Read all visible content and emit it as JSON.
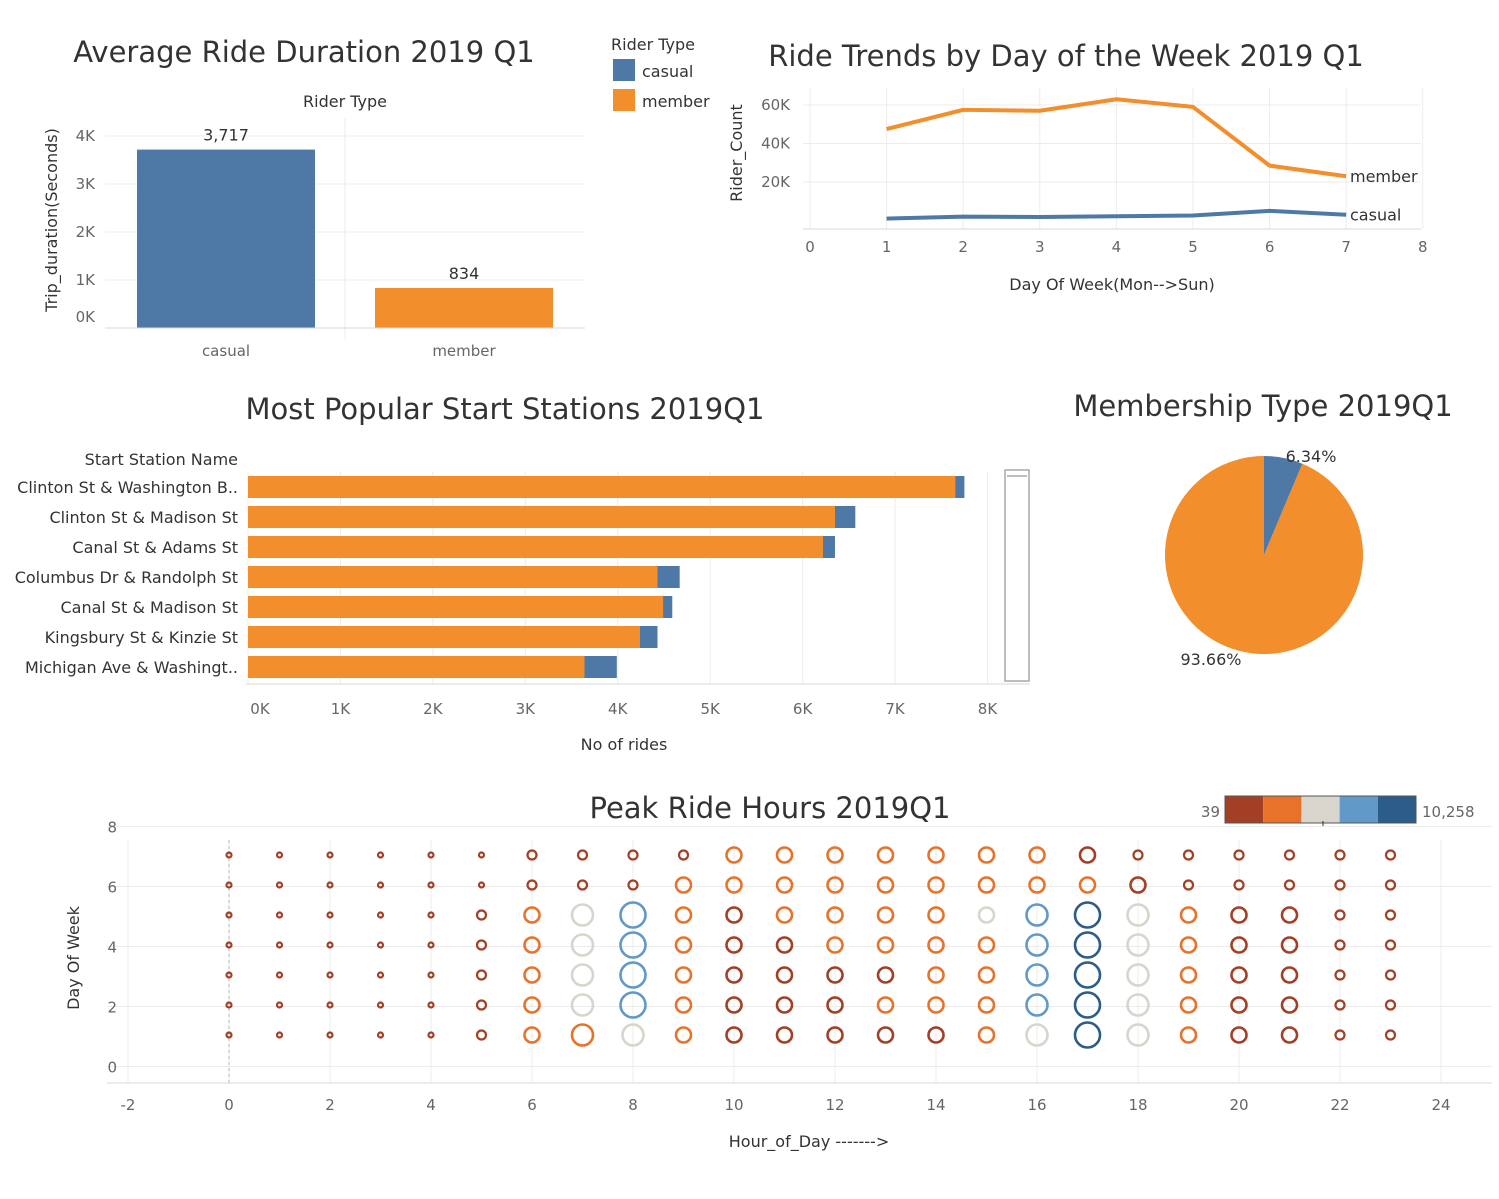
{
  "colors": {
    "casual": "#4e79a7",
    "member": "#f28e2b",
    "scale": [
      "#a23f25",
      "#e8722a",
      "#d8d5cd",
      "#6199c8",
      "#2c5c8a"
    ]
  },
  "legend_rider": {
    "title": "Rider Type",
    "items": [
      {
        "label": "casual",
        "color": "#4e79a7"
      },
      {
        "label": "member",
        "color": "#f28e2b"
      }
    ]
  },
  "color_legend": {
    "min": "39",
    "max": "10,258"
  },
  "chart_data": [
    {
      "id": "duration",
      "type": "bar",
      "title": "Average Ride Duration 2019 Q1",
      "header": "Rider Type",
      "ylabel": "Trip_duration(Seconds)",
      "categories": [
        "casual",
        "member"
      ],
      "values": [
        3717,
        834
      ],
      "value_labels": [
        "3,717",
        "834"
      ],
      "yticks": [
        "0K",
        "1K",
        "2K",
        "3K",
        "4K"
      ],
      "ylim": [
        0,
        4300
      ]
    },
    {
      "id": "trends",
      "type": "line",
      "title": "Ride Trends by Day of the Week 2019 Q1",
      "xlabel": "Day Of Week(Mon-->Sun)",
      "ylabel": "Rider_Count",
      "x": [
        1,
        2,
        3,
        4,
        5,
        6,
        7
      ],
      "series": [
        {
          "name": "member",
          "values": [
            47500,
            57500,
            57000,
            63000,
            59000,
            28500,
            23000
          ]
        },
        {
          "name": "casual",
          "values": [
            1000,
            2000,
            1800,
            2200,
            2600,
            5000,
            3000
          ]
        }
      ],
      "xticks": [
        "0",
        "1",
        "2",
        "3",
        "4",
        "5",
        "6",
        "7",
        "8"
      ],
      "yticks": [
        "20K",
        "40K",
        "60K"
      ],
      "xlim": [
        0,
        8
      ],
      "ylim": [
        -8000,
        68000
      ]
    },
    {
      "id": "stations",
      "type": "bar",
      "title": "Most Popular Start Stations 2019Q1",
      "header": "Start Station Name",
      "xlabel": "No of rides",
      "categories": [
        "Clinton St & Washington B..",
        "Clinton St & Madison St",
        "Canal St & Adams St",
        "Columbus Dr & Randolph St",
        "Canal St & Madison St",
        "Kingsbury St & Kinzie St",
        "Michigan Ave & Washingt.."
      ],
      "series": [
        {
          "name": "member",
          "values": [
            7650,
            6350,
            6220,
            4430,
            4490,
            4240,
            3640
          ]
        },
        {
          "name": "casual",
          "values": [
            100,
            220,
            130,
            240,
            100,
            190,
            350
          ]
        }
      ],
      "xticks": [
        "0K",
        "1K",
        "2K",
        "3K",
        "4K",
        "5K",
        "6K",
        "7K",
        "8K"
      ],
      "xlim": [
        0,
        8000
      ]
    },
    {
      "id": "membership",
      "type": "pie",
      "title": "Membership Type 2019Q1",
      "slices": [
        {
          "name": "casual",
          "value": 6.34,
          "label": "6.34%"
        },
        {
          "name": "member",
          "value": 93.66,
          "label": "93.66%"
        }
      ]
    },
    {
      "id": "peak",
      "type": "scatter",
      "title": "Peak Ride Hours 2019Q1",
      "xlabel": "Hour_of_Day ------->",
      "ylabel": "Day Of Week",
      "xlim": [
        -2,
        25
      ],
      "ylim": [
        -0.5,
        8.6
      ],
      "xticks": [
        "-2",
        "0",
        "2",
        "4",
        "6",
        "8",
        "10",
        "12",
        "14",
        "16",
        "18",
        "20",
        "22",
        "24"
      ],
      "yticks": [
        "0",
        "2",
        "4",
        "6",
        "8"
      ],
      "hours": [
        0,
        1,
        2,
        3,
        4,
        5,
        6,
        7,
        8,
        9,
        10,
        11,
        12,
        13,
        14,
        15,
        16,
        17,
        18,
        19,
        20,
        21,
        22,
        23
      ],
      "days": [
        1,
        2,
        3,
        4,
        5,
        6,
        7
      ],
      "color_class_by_day": [
        [
          0,
          0,
          0,
          0,
          0,
          0,
          1,
          1,
          2,
          1,
          0,
          0,
          0,
          0,
          0,
          1,
          2,
          4,
          2,
          1,
          0,
          0,
          0,
          0
        ],
        [
          0,
          0,
          0,
          0,
          0,
          0,
          1,
          2,
          3,
          1,
          0,
          0,
          0,
          1,
          1,
          1,
          3,
          4,
          2,
          1,
          0,
          0,
          0,
          0
        ],
        [
          0,
          0,
          0,
          0,
          0,
          0,
          1,
          2,
          3,
          1,
          0,
          0,
          0,
          0,
          1,
          1,
          3,
          4,
          2,
          1,
          0,
          0,
          0,
          0
        ],
        [
          0,
          0,
          0,
          0,
          0,
          0,
          1,
          2,
          3,
          1,
          0,
          0,
          1,
          1,
          1,
          1,
          3,
          4,
          2,
          1,
          0,
          0,
          0,
          0
        ],
        [
          0,
          0,
          0,
          0,
          0,
          0,
          1,
          2,
          3,
          1,
          0,
          1,
          1,
          1,
          1,
          2,
          3,
          4,
          2,
          1,
          0,
          0,
          0,
          0
        ],
        [
          0,
          0,
          0,
          0,
          0,
          0,
          0,
          0,
          0,
          1,
          1,
          1,
          1,
          1,
          1,
          1,
          1,
          1,
          0,
          0,
          0,
          0,
          0,
          0
        ],
        [
          0,
          0,
          0,
          0,
          0,
          0,
          0,
          0,
          0,
          0,
          1,
          1,
          1,
          1,
          1,
          1,
          1,
          0,
          0,
          0,
          0,
          0,
          0,
          0
        ]
      ],
      "size_class_by_day": [
        [
          0,
          0,
          0,
          0,
          0,
          1,
          2,
          3,
          3,
          2,
          2,
          2,
          2,
          2,
          2,
          2,
          3,
          4,
          3,
          2,
          2,
          2,
          1,
          1
        ],
        [
          0,
          0,
          0,
          0,
          0,
          1,
          2,
          3,
          4,
          2,
          2,
          2,
          2,
          2,
          2,
          2,
          3,
          4,
          3,
          2,
          2,
          2,
          1,
          1
        ],
        [
          0,
          0,
          0,
          0,
          0,
          1,
          2,
          3,
          4,
          2,
          2,
          2,
          2,
          2,
          2,
          2,
          3,
          4,
          3,
          2,
          2,
          2,
          1,
          1
        ],
        [
          0,
          0,
          0,
          0,
          0,
          1,
          2,
          3,
          4,
          2,
          2,
          2,
          2,
          2,
          2,
          2,
          3,
          4,
          3,
          2,
          2,
          2,
          1,
          1
        ],
        [
          0,
          0,
          0,
          0,
          0,
          1,
          2,
          3,
          4,
          2,
          2,
          2,
          2,
          2,
          2,
          2,
          3,
          4,
          3,
          2,
          2,
          2,
          1,
          1
        ],
        [
          0,
          0,
          0,
          0,
          0,
          0,
          1,
          1,
          1,
          2,
          2,
          2,
          2,
          2,
          2,
          2,
          2,
          2,
          2,
          1,
          1,
          1,
          1,
          1
        ],
        [
          0,
          0,
          0,
          0,
          0,
          0,
          1,
          1,
          1,
          1,
          2,
          2,
          2,
          2,
          2,
          2,
          2,
          2,
          1,
          1,
          1,
          1,
          1,
          1
        ]
      ]
    }
  ]
}
